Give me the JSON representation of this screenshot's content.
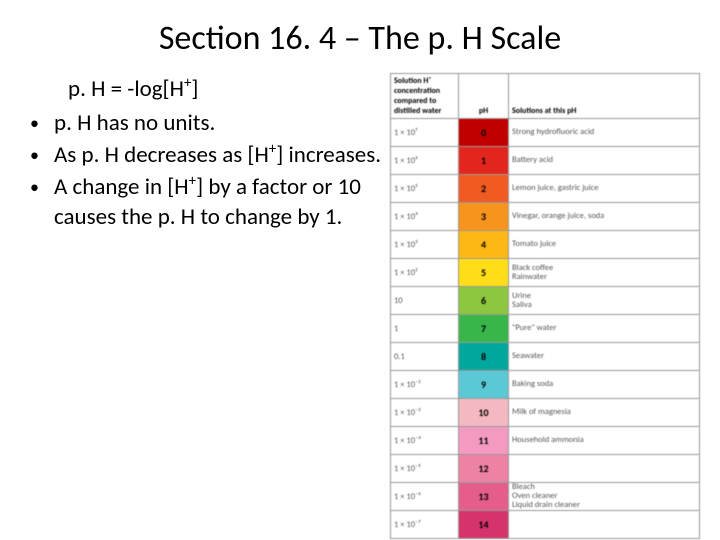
{
  "title": "Section 16. 4 – The p. H Scale",
  "formula": "p. H = -log[H⁺]",
  "bullets": [
    "p. H has no units.",
    "As p. H decreases as [H⁺] increases.",
    "A change in [H⁺] by a factor or 10 causes the p. H to change by 1."
  ],
  "table": {
    "headers": {
      "conc": "Solution H⁺ concentration compared to distilled water",
      "ph": "pH",
      "sol": "Solutions at this pH"
    },
    "rows": [
      {
        "conc": "1 × 10⁷",
        "ph": "0",
        "color": "#c00000",
        "sol": "Strong hydrofluoric acid"
      },
      {
        "conc": "1 × 10⁶",
        "ph": "1",
        "color": "#e2261d",
        "sol": "Battery acid"
      },
      {
        "conc": "1 × 10⁵",
        "ph": "2",
        "color": "#f15a22",
        "sol": "Lemon juice, gastric juice"
      },
      {
        "conc": "1 × 10⁴",
        "ph": "3",
        "color": "#f7941d",
        "sol": "Vinegar, orange juice, soda"
      },
      {
        "conc": "1 × 10³",
        "ph": "4",
        "color": "#fdb813",
        "sol": "Tomato juice"
      },
      {
        "conc": "1 × 10²",
        "ph": "5",
        "color": "#ffde17",
        "sol": "Black coffee\nRainwater"
      },
      {
        "conc": "10",
        "ph": "6",
        "color": "#8dc63f",
        "sol": "Urine\nSaliva"
      },
      {
        "conc": "1",
        "ph": "7",
        "color": "#39b54a",
        "sol": "\"Pure\" water"
      },
      {
        "conc": "0.1",
        "ph": "8",
        "color": "#00a79d",
        "sol": "Seawater"
      },
      {
        "conc": "1 × 10⁻²",
        "ph": "9",
        "color": "#5bc8d6",
        "sol": "Baking soda"
      },
      {
        "conc": "1 × 10⁻³",
        "ph": "10",
        "color": "#f4b8c1",
        "sol": "Milk of magnesia"
      },
      {
        "conc": "1 × 10⁻⁴",
        "ph": "11",
        "color": "#f49ac1",
        "sol": "Household ammonia"
      },
      {
        "conc": "1 × 10⁻⁵",
        "ph": "12",
        "color": "#ee82a5",
        "sol": ""
      },
      {
        "conc": "1 × 10⁻⁶",
        "ph": "13",
        "color": "#e55d8a",
        "sol": "Bleach\nOven cleaner\nLiquid drain cleaner"
      },
      {
        "conc": "1 × 10⁻⁷",
        "ph": "14",
        "color": "#d6336c",
        "sol": ""
      }
    ]
  }
}
